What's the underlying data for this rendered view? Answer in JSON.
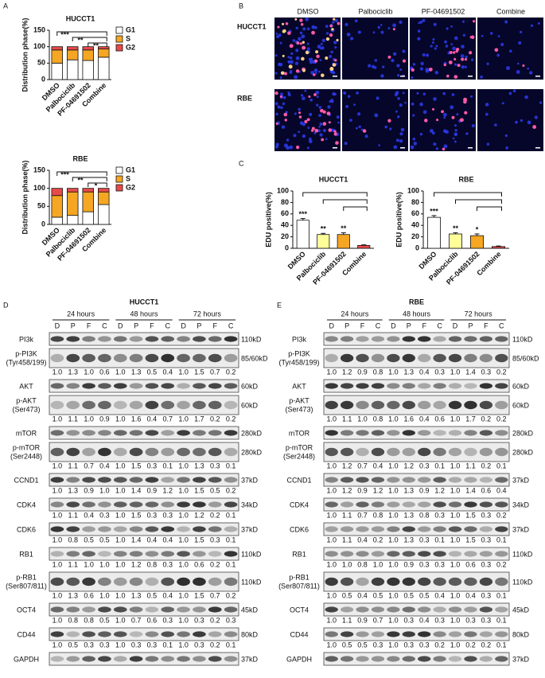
{
  "panel_labels": [
    "A",
    "B",
    "C",
    "D",
    "E"
  ],
  "chart_data": [
    {
      "type": "bar",
      "stacked": true,
      "title": "HUCCT1",
      "y_label": "Distribution phase(%)",
      "categories": [
        "DMSO",
        "Palbociclib",
        "PF-04691502",
        "Combine"
      ],
      "series": [
        {
          "name": "G1",
          "color": "#ffffff",
          "values": [
            50,
            60,
            58,
            68
          ],
          "errors": [
            2,
            3,
            3,
            3
          ]
        },
        {
          "name": "S",
          "color": "#f5a623",
          "values": [
            40,
            30,
            32,
            25
          ]
        },
        {
          "name": "G2",
          "color": "#e84a4a",
          "values": [
            10,
            10,
            10,
            7
          ]
        }
      ],
      "ylim": [
        0,
        150
      ],
      "yticks": [
        0,
        50,
        100,
        150
      ],
      "significance": [
        "***",
        "**",
        "**"
      ],
      "legend": "right"
    },
    {
      "type": "bar",
      "stacked": true,
      "title": "RBE",
      "y_label": "Distribution phase(%)",
      "categories": [
        "DMSO",
        "Palbociclib",
        "PF-04691502",
        "Combine"
      ],
      "series": [
        {
          "name": "G1",
          "color": "#ffffff",
          "values": [
            20,
            25,
            35,
            55
          ],
          "errors": [
            2,
            2,
            3,
            3
          ]
        },
        {
          "name": "S",
          "color": "#f5a623",
          "values": [
            60,
            65,
            55,
            35
          ]
        },
        {
          "name": "G2",
          "color": "#e84a4a",
          "values": [
            20,
            10,
            10,
            10
          ]
        }
      ],
      "ylim": [
        0,
        150
      ],
      "yticks": [
        0,
        50,
        100,
        150
      ],
      "significance": [
        "***",
        "**",
        "*"
      ],
      "legend": "right"
    },
    {
      "type": "bar",
      "title": "HUCCT1",
      "y_label": "EDU positive(%)",
      "categories": [
        "DMSO",
        "Palbociclib",
        "PF-04691502",
        "Combine"
      ],
      "values": [
        49,
        24,
        24,
        5
      ],
      "errors": [
        3,
        2,
        3,
        1
      ],
      "colors": [
        "#ffffff",
        "#ffff99",
        "#f5a623",
        "#e84a4a"
      ],
      "ylim": [
        0,
        100
      ],
      "yticks": [
        0,
        20,
        40,
        60,
        80,
        100
      ],
      "significance": [
        "***",
        "**",
        "**"
      ]
    },
    {
      "type": "bar",
      "title": "RBE",
      "y_label": "EDU positive(%)",
      "categories": [
        "DMSO",
        "Palbociclib",
        "PF-04691502",
        "Combine"
      ],
      "values": [
        54,
        25,
        22,
        3
      ],
      "errors": [
        3,
        2,
        3,
        1
      ],
      "colors": [
        "#ffffff",
        "#ffff99",
        "#f5a623",
        "#e84a4a"
      ],
      "ylim": [
        0,
        100
      ],
      "yticks": [
        0,
        20,
        40,
        60,
        80,
        100
      ],
      "significance": [
        "***",
        "**",
        "*"
      ]
    }
  ],
  "micrographs": {
    "columns": [
      "DMSO",
      "Palbociclib",
      "PF-04691502",
      "Combine"
    ],
    "rows": [
      "HUCCT1",
      "RBE"
    ]
  },
  "blots": [
    {
      "title": "HUCCT1",
      "times": [
        "24 hours",
        "48 hours",
        "72 hours"
      ],
      "lanes": [
        "D",
        "P",
        "F",
        "C"
      ],
      "rows": [
        {
          "label": "PI3k",
          "size": "110kD"
        },
        {
          "label": "p-PI3K",
          "site": "(Tyr458/199)",
          "size": "85/60kD",
          "values": [
            "1.0",
            "1.3",
            "1.0",
            "0.6",
            "1.0",
            "1.3",
            "0.5",
            "0.4",
            "1.0",
            "1.5",
            "0.7",
            "0.2"
          ]
        },
        {
          "label": "AKT",
          "size": "60kD"
        },
        {
          "label": "p-AKT",
          "site": "(Ser473)",
          "size": "60kD",
          "values": [
            "1.0",
            "1.1",
            "1.0",
            "0.9",
            "1.0",
            "1.6",
            "0.4",
            "0.7",
            "1.0",
            "1.7",
            "0.2",
            "0.2"
          ]
        },
        {
          "label": "mTOR",
          "size": "280kD"
        },
        {
          "label": "p-mTOR",
          "site": "(Ser2448)",
          "size": "280kD",
          "values": [
            "1.0",
            "1.1",
            "0.7",
            "0.4",
            "1.0",
            "1.5",
            "0.3",
            "0.1",
            "1.0",
            "1.3",
            "0.3",
            "0.1"
          ]
        },
        {
          "label": "CCND1",
          "size": "37kD",
          "values": [
            "1.0",
            "1.3",
            "0.9",
            "1.0",
            "1.0",
            "1.4",
            "0.9",
            "1.2",
            "1.0",
            "1.5",
            "0.5",
            "0.2"
          ]
        },
        {
          "label": "CDK4",
          "size": "34kD",
          "values": [
            "1.0",
            "1.1",
            "0.4",
            "0.3",
            "1.0",
            "1.5",
            "0.3",
            "0.3",
            "1.0",
            "1.2",
            "0.2",
            "0.1"
          ]
        },
        {
          "label": "CDK6",
          "size": "37kD",
          "values": [
            "1.0",
            "0.8",
            "0.5",
            "0.5",
            "1.0",
            "1.4",
            "0.4",
            "0.4",
            "1.0",
            "1.5",
            "0.3",
            "0.1"
          ]
        },
        {
          "label": "RB1",
          "size": "110kD",
          "values": [
            "1.0",
            "1.1",
            "1.0",
            "1.0",
            "1.0",
            "1.2",
            "0.8",
            "0.3",
            "1.0",
            "0.6",
            "0.2",
            "0.1"
          ]
        },
        {
          "label": "p-RB1",
          "site": "(Ser807/811)",
          "size": "110kD",
          "values": [
            "1.0",
            "1.3",
            "0.6",
            "1.0",
            "1.0",
            "1.3",
            "0.5",
            "0.4",
            "1.0",
            "1.5",
            "0.7",
            "0.2"
          ]
        },
        {
          "label": "OCT4",
          "size": "45kD",
          "values": [
            "1.0",
            "0.8",
            "0.8",
            "0.5",
            "1.0",
            "0.7",
            "0.6",
            "0.3",
            "1.0",
            "0.3",
            "0.2",
            "0.3"
          ]
        },
        {
          "label": "CD44",
          "size": "80kD",
          "values": [
            "1.0",
            "0.5",
            "0.3",
            "0.3",
            "1.0",
            "0.3",
            "0.3",
            "0.1",
            "1.0",
            "0.3",
            "0.2",
            "0.1"
          ]
        },
        {
          "label": "GAPDH",
          "size": "37kD"
        }
      ]
    },
    {
      "title": "RBE",
      "times": [
        "24 hours",
        "48 hours",
        "72 hours"
      ],
      "lanes": [
        "D",
        "P",
        "F",
        "C"
      ],
      "rows": [
        {
          "label": "PI3k",
          "size": "110kD"
        },
        {
          "label": "p-PI3K",
          "site": "(Tyr458/199)",
          "size": "85/60kD",
          "values": [
            "1.0",
            "1.2",
            "0.9",
            "0.8",
            "1.0",
            "1.3",
            "0.4",
            "0.3",
            "1.0",
            "1.4",
            "0.3",
            "0.2"
          ]
        },
        {
          "label": "AKT",
          "size": "60kD"
        },
        {
          "label": "p-AKT",
          "site": "(Ser473)",
          "size": "60kD",
          "values": [
            "1.0",
            "1.1",
            "1.0",
            "0.8",
            "1.0",
            "1.6",
            "0.4",
            "0.6",
            "1.0",
            "1.7",
            "0.2",
            "0.2"
          ]
        },
        {
          "label": "mTOR",
          "size": "280kD"
        },
        {
          "label": "p-mTOR",
          "site": "(Ser2448)",
          "size": "280kD",
          "values": [
            "1.0",
            "1.2",
            "0.7",
            "0.4",
            "1.0",
            "1.2",
            "0.3",
            "0.1",
            "1.0",
            "1.1",
            "0.2",
            "0.1"
          ]
        },
        {
          "label": "CCND1",
          "size": "37kD",
          "values": [
            "1.0",
            "1.2",
            "0.9",
            "1.2",
            "1.0",
            "1.3",
            "0.9",
            "1.2",
            "1.0",
            "1.4",
            "0.6",
            "0.4"
          ]
        },
        {
          "label": "CDK4",
          "size": "34kD",
          "values": [
            "1.0",
            "1.1",
            "0.7",
            "0.8",
            "1.0",
            "1.3",
            "0.8",
            "0.3",
            "1.0",
            "1.5",
            "0.3",
            "0.2"
          ]
        },
        {
          "label": "CDK6",
          "size": "37kD",
          "values": [
            "1.0",
            "1.1",
            "0.4",
            "0.2",
            "1.0",
            "1.3",
            "0.3",
            "0.1",
            "1.0",
            "1.5",
            "0.3",
            "0.1"
          ]
        },
        {
          "label": "RB1",
          "size": "110kD",
          "values": [
            "1.0",
            "1.0",
            "0.8",
            "1.0",
            "1.0",
            "0.9",
            "0.3",
            "0.3",
            "1.0",
            "0.6",
            "0.3",
            "0.2"
          ]
        },
        {
          "label": "p-RB1",
          "site": "(Ser807/811)",
          "size": "110kD",
          "values": [
            "1.0",
            "0.5",
            "0.4",
            "0.5",
            "1.0",
            "0.5",
            "0.5",
            "0.4",
            "1.0",
            "0.4",
            "0.3",
            "0.1"
          ]
        },
        {
          "label": "OCT4",
          "size": "45kD",
          "values": [
            "1.0",
            "1.1",
            "0.9",
            "0.7",
            "1.0",
            "0.3",
            "0.4",
            "0.3",
            "1.0",
            "0.3",
            "0.3",
            "0.1"
          ]
        },
        {
          "label": "CD44",
          "size": "80kD",
          "values": [
            "1.0",
            "0.5",
            "0.5",
            "0.3",
            "1.0",
            "0.3",
            "0.3",
            "0.2",
            "1.0",
            "0.2",
            "0.2",
            "0.1"
          ]
        },
        {
          "label": "GAPDH",
          "size": "37kD"
        }
      ]
    }
  ]
}
